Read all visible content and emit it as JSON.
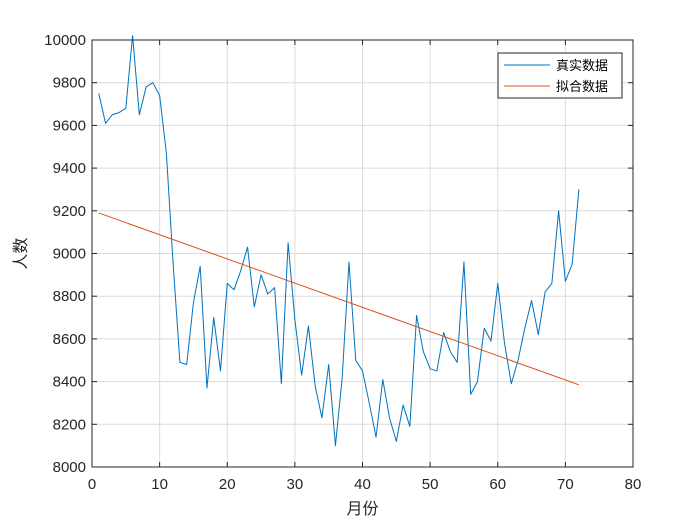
{
  "colors": {
    "real": "#0072BD",
    "fit": "#D95319",
    "grid": "#DCDCDC",
    "axis": "#262626"
  },
  "chart_data": {
    "type": "line",
    "xlabel": "月份",
    "ylabel": "人数",
    "xlim": [
      0,
      80
    ],
    "ylim": [
      8000,
      10000
    ],
    "xticks": [
      0,
      10,
      20,
      30,
      40,
      50,
      60,
      70,
      80
    ],
    "yticks": [
      8000,
      8200,
      8400,
      8600,
      8800,
      9000,
      9200,
      9400,
      9600,
      9800,
      10000
    ],
    "grid": true,
    "legend_position": "top-right",
    "series": [
      {
        "name": "真实数据",
        "x": [
          1,
          2,
          3,
          4,
          5,
          6,
          7,
          8,
          9,
          10,
          11,
          12,
          13,
          14,
          15,
          16,
          17,
          18,
          19,
          20,
          21,
          22,
          23,
          24,
          25,
          26,
          27,
          28,
          29,
          30,
          31,
          32,
          33,
          34,
          35,
          36,
          37,
          38,
          39,
          40,
          41,
          42,
          43,
          44,
          45,
          46,
          47,
          48,
          49,
          50,
          51,
          52,
          53,
          54,
          55,
          56,
          57,
          58,
          59,
          60,
          61,
          62,
          63,
          64,
          65,
          66,
          67,
          68,
          69,
          70,
          71,
          72
        ],
        "y": [
          9750,
          9610,
          9650,
          9660,
          9680,
          10020,
          9650,
          9780,
          9800,
          9740,
          9470,
          8950,
          8490,
          8480,
          8770,
          8940,
          8370,
          8700,
          8450,
          8860,
          8830,
          8920,
          9030,
          8750,
          8900,
          8810,
          8840,
          8390,
          9050,
          8690,
          8430,
          8660,
          8380,
          8230,
          8480,
          8100,
          8420,
          8960,
          8500,
          8450,
          8300,
          8140,
          8410,
          8230,
          8120,
          8290,
          8190,
          8710,
          8540,
          8460,
          8450,
          8630,
          8540,
          8490,
          8960,
          8340,
          8400,
          8650,
          8590,
          8860,
          8580,
          8390,
          8500,
          8650,
          8780,
          8620,
          8820,
          8860,
          9200,
          8870,
          8950,
          9300
        ]
      },
      {
        "name": "拟合数据",
        "x": [
          1,
          72
        ],
        "y": [
          9190,
          8385
        ]
      }
    ]
  }
}
